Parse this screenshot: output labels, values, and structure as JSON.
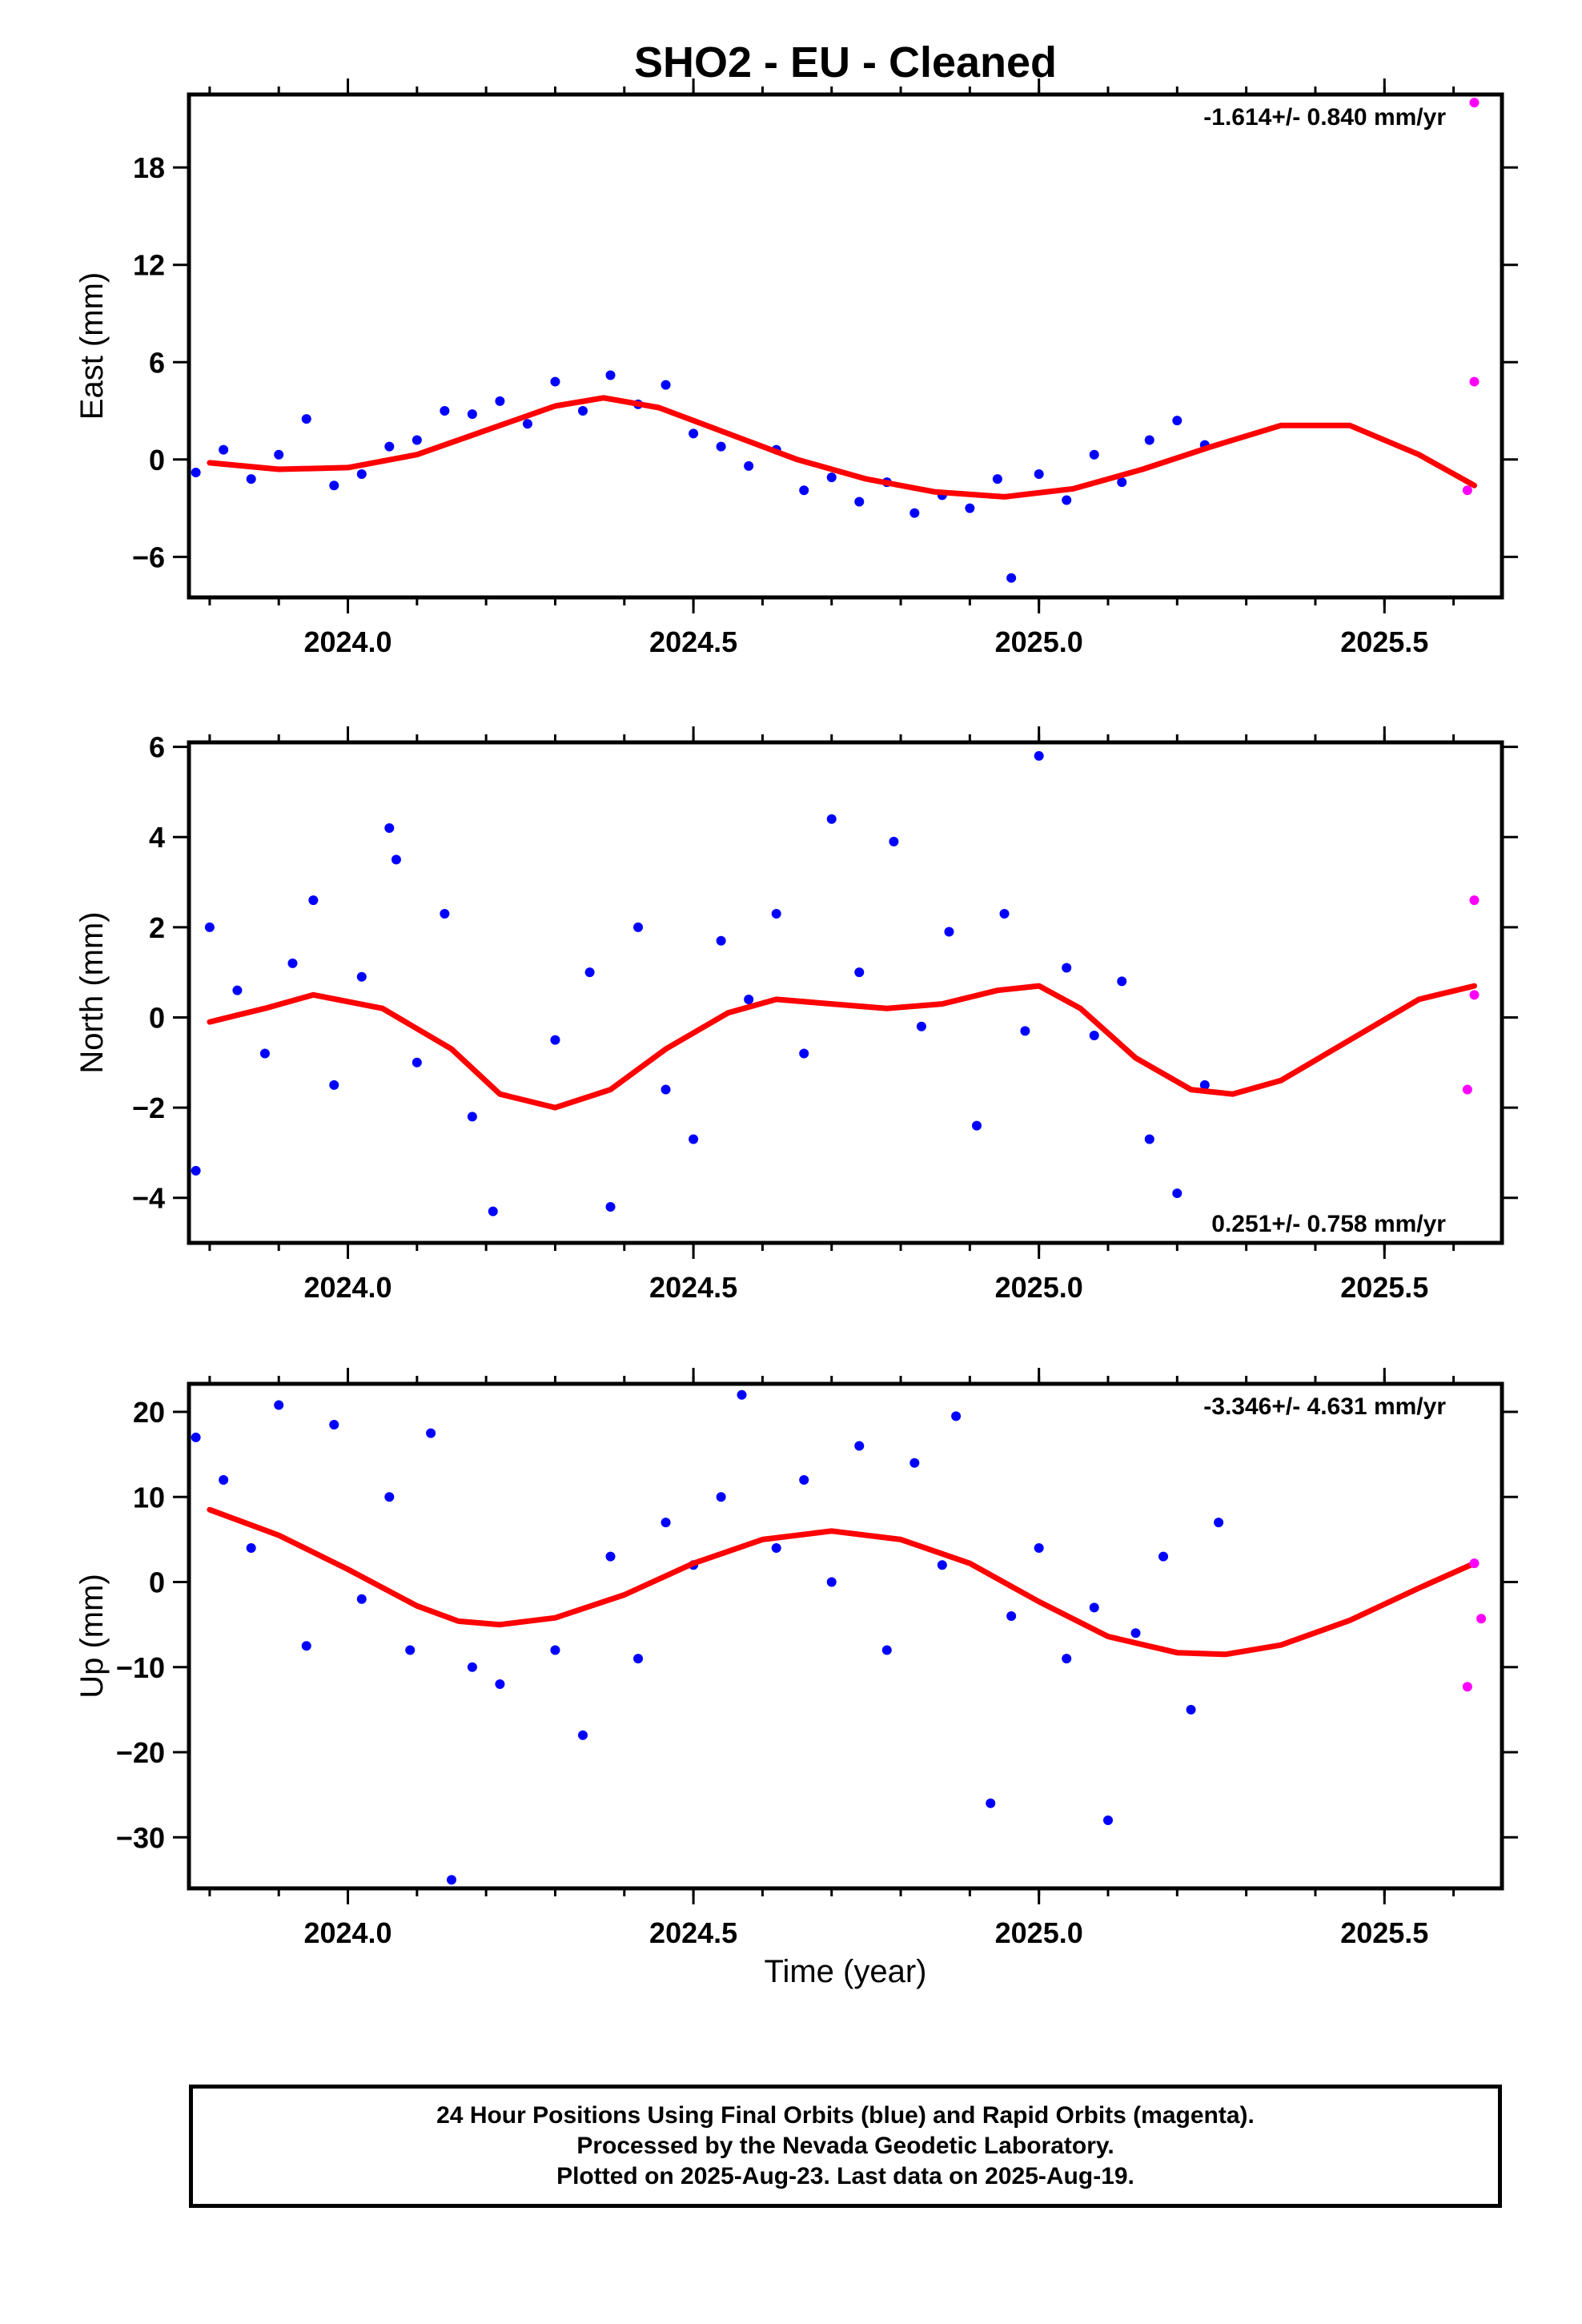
{
  "title": "SHO2  - EU - Cleaned",
  "colors": {
    "final": "#0000ff",
    "rapid": "#ff00ff",
    "fit": "#ff0000"
  },
  "x_axis": {
    "label": "Time (year)",
    "ticks": [
      "2024.0",
      "2024.5",
      "2025.0",
      "2025.5"
    ]
  },
  "footer": {
    "line1": "24 Hour Positions Using Final Orbits (blue) and Rapid Orbits (magenta).",
    "line2": "Processed by the Nevada Geodetic Laboratory.",
    "line3": "Plotted on 2025-Aug-23. Last data on 2025-Aug-19."
  },
  "chart_data": [
    {
      "type": "scatter",
      "component": "east",
      "ylabel": "East (mm)",
      "xlim": [
        2023.77,
        2025.67
      ],
      "ylim": [
        -8.5,
        22.5
      ],
      "yticks": [
        -6,
        0,
        6,
        12,
        18
      ],
      "ytick_labels": [
        "−6",
        "0",
        "6",
        "12",
        "18"
      ],
      "rate_text": "-1.614+/- 0.840 mm/yr",
      "rate_position": "top-right",
      "fit": {
        "x": [
          2023.8,
          2023.9,
          2024.0,
          2024.1,
          2024.2,
          2024.3,
          2024.37,
          2024.45,
          2024.55,
          2024.65,
          2024.75,
          2024.85,
          2024.95,
          2025.05,
          2025.15,
          2025.25,
          2025.35,
          2025.45,
          2025.55,
          2025.63
        ],
        "y": [
          -0.2,
          -0.6,
          -0.5,
          0.3,
          1.8,
          3.3,
          3.8,
          3.2,
          1.6,
          0.0,
          -1.2,
          -2.0,
          -2.3,
          -1.8,
          -0.6,
          0.8,
          2.1,
          2.1,
          0.3,
          -1.6
        ]
      },
      "final": {
        "x": [
          2023.78,
          2023.82,
          2023.86,
          2023.9,
          2023.94,
          2023.98,
          2024.02,
          2024.06,
          2024.1,
          2024.14,
          2024.18,
          2024.22,
          2024.26,
          2024.3,
          2024.34,
          2024.38,
          2024.42,
          2024.46,
          2024.5,
          2024.54,
          2024.58,
          2024.62,
          2024.66,
          2024.7,
          2024.74,
          2024.78,
          2024.82,
          2024.86,
          2024.9,
          2024.94,
          2024.96,
          2025.0,
          2025.04,
          2025.08,
          2025.12,
          2025.16,
          2025.2,
          2025.24
        ],
        "y": [
          -0.8,
          0.6,
          -1.2,
          0.3,
          2.5,
          -1.6,
          -0.9,
          0.8,
          1.2,
          3.0,
          2.8,
          3.6,
          2.2,
          4.8,
          3.0,
          5.2,
          3.4,
          4.6,
          1.6,
          0.8,
          -0.4,
          0.6,
          -1.9,
          -1.1,
          -2.6,
          -1.4,
          -3.3,
          -2.2,
          -3.0,
          -1.2,
          -7.3,
          -0.9,
          -2.5,
          0.3,
          -1.4,
          1.2,
          2.4,
          0.9
        ]
      },
      "rapid": {
        "x": [
          2025.63,
          2025.63,
          2025.62
        ],
        "y": [
          22.0,
          4.8,
          -1.9
        ]
      }
    },
    {
      "type": "scatter",
      "component": "north",
      "ylabel": "North (mm)",
      "xlim": [
        2023.77,
        2025.67
      ],
      "ylim": [
        -5.0,
        6.1
      ],
      "yticks": [
        -4,
        -2,
        0,
        2,
        4,
        6
      ],
      "ytick_labels": [
        "−4",
        "−2",
        "0",
        "2",
        "4",
        "6"
      ],
      "rate_text": "0.251+/- 0.758 mm/yr",
      "rate_position": "bottom-right",
      "fit": {
        "x": [
          2023.8,
          2023.88,
          2023.95,
          2024.05,
          2024.15,
          2024.22,
          2024.3,
          2024.38,
          2024.46,
          2024.55,
          2024.62,
          2024.7,
          2024.78,
          2024.86,
          2024.94,
          2025.0,
          2025.06,
          2025.14,
          2025.22,
          2025.28,
          2025.35,
          2025.45,
          2025.55,
          2025.63
        ],
        "y": [
          -0.1,
          0.2,
          0.5,
          0.2,
          -0.7,
          -1.7,
          -2.0,
          -1.6,
          -0.7,
          0.1,
          0.4,
          0.3,
          0.2,
          0.3,
          0.6,
          0.7,
          0.2,
          -0.9,
          -1.6,
          -1.7,
          -1.4,
          -0.5,
          0.4,
          0.7
        ]
      },
      "final": {
        "x": [
          2023.78,
          2023.8,
          2023.84,
          2023.88,
          2023.92,
          2023.95,
          2023.98,
          2024.02,
          2024.06,
          2024.07,
          2024.1,
          2024.14,
          2024.18,
          2024.21,
          2024.3,
          2024.35,
          2024.38,
          2024.42,
          2024.46,
          2024.5,
          2024.54,
          2024.58,
          2024.62,
          2024.66,
          2024.7,
          2024.74,
          2024.79,
          2024.83,
          2024.87,
          2024.91,
          2024.95,
          2024.98,
          2025.0,
          2025.04,
          2025.08,
          2025.12,
          2025.16,
          2025.2,
          2025.24
        ],
        "y": [
          -3.4,
          2.0,
          0.6,
          -0.8,
          1.2,
          2.6,
          -1.5,
          0.9,
          4.2,
          3.5,
          -1.0,
          2.3,
          -2.2,
          -4.3,
          -0.5,
          1.0,
          -4.2,
          2.0,
          -1.6,
          -2.7,
          1.7,
          0.4,
          2.3,
          -0.8,
          4.4,
          1.0,
          3.9,
          -0.2,
          1.9,
          -2.4,
          2.3,
          -0.3,
          5.8,
          1.1,
          -0.4,
          0.8,
          -2.7,
          -3.9,
          -1.5
        ]
      },
      "rapid": {
        "x": [
          2025.63,
          2025.63,
          2025.62
        ],
        "y": [
          2.6,
          0.5,
          -1.6
        ]
      }
    },
    {
      "type": "scatter",
      "component": "up",
      "ylabel": "Up (mm)",
      "xlim": [
        2023.77,
        2025.67
      ],
      "ylim": [
        -36.0,
        23.3
      ],
      "yticks": [
        -30,
        -20,
        -10,
        0,
        10,
        20
      ],
      "ytick_labels": [
        "−30",
        "−20",
        "−10",
        "0",
        "10",
        "20"
      ],
      "rate_text": "-3.346+/- 4.631 mm/yr",
      "rate_position": "top-right",
      "fit": {
        "x": [
          2023.8,
          2023.9,
          2024.0,
          2024.1,
          2024.16,
          2024.22,
          2024.3,
          2024.4,
          2024.5,
          2024.6,
          2024.7,
          2024.8,
          2024.9,
          2025.0,
          2025.1,
          2025.2,
          2025.27,
          2025.35,
          2025.45,
          2025.55,
          2025.63
        ],
        "y": [
          8.5,
          5.5,
          1.5,
          -2.8,
          -4.6,
          -5.0,
          -4.2,
          -1.5,
          2.2,
          5.0,
          6.0,
          5.0,
          2.2,
          -2.3,
          -6.4,
          -8.3,
          -8.5,
          -7.4,
          -4.5,
          -0.7,
          2.2
        ]
      },
      "final": {
        "x": [
          2023.78,
          2023.82,
          2023.86,
          2023.9,
          2023.94,
          2023.98,
          2024.02,
          2024.06,
          2024.09,
          2024.12,
          2024.15,
          2024.18,
          2024.22,
          2024.3,
          2024.34,
          2024.38,
          2024.42,
          2024.46,
          2024.5,
          2024.54,
          2024.57,
          2024.62,
          2024.66,
          2024.7,
          2024.74,
          2024.78,
          2024.82,
          2024.86,
          2024.88,
          2024.93,
          2024.96,
          2025.0,
          2025.04,
          2025.08,
          2025.1,
          2025.14,
          2025.18,
          2025.22,
          2025.26
        ],
        "y": [
          17.0,
          12.0,
          4.0,
          20.8,
          -7.5,
          18.5,
          -2.0,
          10.0,
          -8.0,
          17.5,
          -35.0,
          -10.0,
          -12.0,
          -8.0,
          -18.0,
          3.0,
          -9.0,
          7.0,
          2.0,
          10.0,
          22.0,
          4.0,
          12.0,
          0.0,
          16.0,
          -8.0,
          14.0,
          2.0,
          19.5,
          -26.0,
          -4.0,
          4.0,
          -9.0,
          -3.0,
          -28.0,
          -6.0,
          3.0,
          -15.0,
          7.0
        ]
      },
      "rapid": {
        "x": [
          2025.63,
          2025.64,
          2025.62
        ],
        "y": [
          2.2,
          -4.3,
          -12.3
        ]
      }
    }
  ]
}
